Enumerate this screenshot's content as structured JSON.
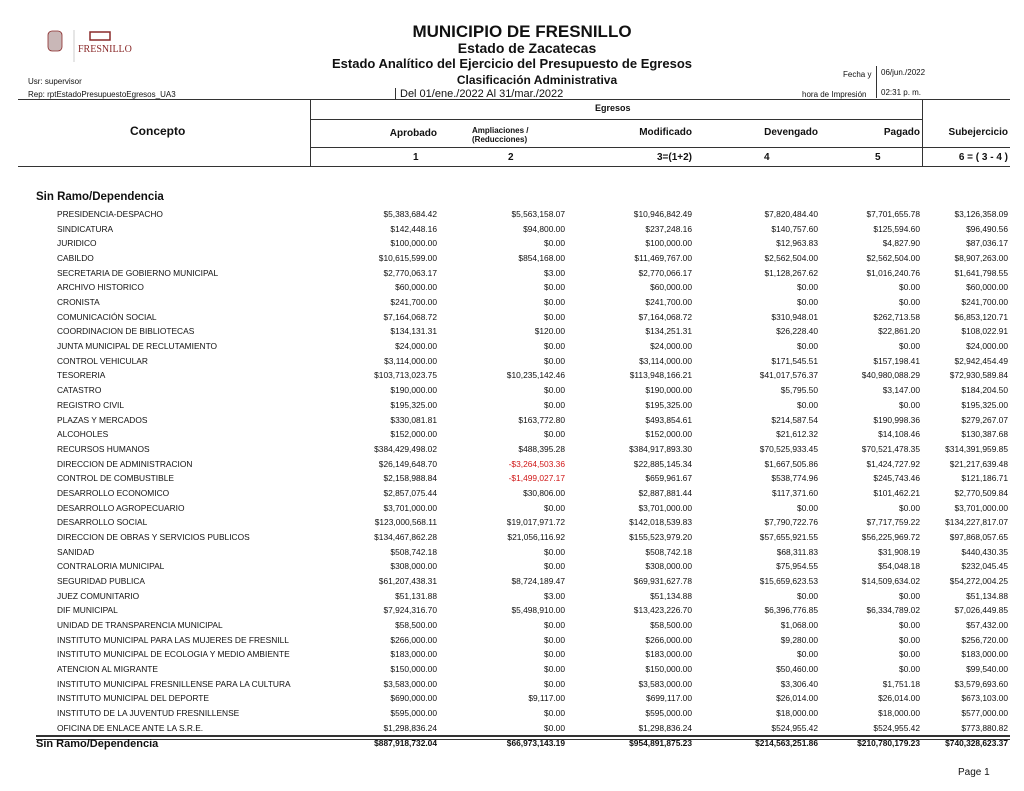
{
  "header": {
    "title": "MUNICIPIO DE FRESNILLO",
    "state": "Estado de Zacatecas",
    "report": "Estado Analítico del Ejercicio del Presupuesto de Egresos",
    "classification": "Clasificación Administrativa",
    "period": "Del 01/ene./2022 Al 31/mar./2022",
    "user": "Usr: supervisor",
    "rep": "Rep: rptEstadoPresupuestoEgresos_UA3",
    "date_label": "Fecha y",
    "date_value": "06/jun./2022",
    "time_label": "hora de Impresión",
    "time_value": "02:31 p. m.",
    "logo_text": "FRESNILLO"
  },
  "columns": {
    "concepto": "Concepto",
    "egresos": "Egresos",
    "aprobado": "Aprobado",
    "ampliaciones": "Ampliaciones /",
    "reducciones": "(Reducciones)",
    "modificado": "Modificado",
    "devengado": "Devengado",
    "pagado": "Pagado",
    "subejercicio": "Subejercicio",
    "n1": "1",
    "n2": "2",
    "n3": "3=(1+2)",
    "n4": "4",
    "n5": "5",
    "n6": "6 = ( 3 - 4 )"
  },
  "group": "Sin Ramo/Dependencia",
  "rows": [
    [
      "PRESIDENCIA-DESPACHO",
      "$5,383,684.42",
      "$5,563,158.07",
      "$10,946,842.49",
      "$7,820,484.40",
      "$7,701,655.78",
      "$3,126,358.09"
    ],
    [
      "SINDICATURA",
      "$142,448.16",
      "$94,800.00",
      "$237,248.16",
      "$140,757.60",
      "$125,594.60",
      "$96,490.56"
    ],
    [
      "JURIDICO",
      "$100,000.00",
      "$0.00",
      "$100,000.00",
      "$12,963.83",
      "$4,827.90",
      "$87,036.17"
    ],
    [
      "CABILDO",
      "$10,615,599.00",
      "$854,168.00",
      "$11,469,767.00",
      "$2,562,504.00",
      "$2,562,504.00",
      "$8,907,263.00"
    ],
    [
      "SECRETARIA DE GOBIERNO MUNICIPAL",
      "$2,770,063.17",
      "$3.00",
      "$2,770,066.17",
      "$1,128,267.62",
      "$1,016,240.76",
      "$1,641,798.55"
    ],
    [
      "ARCHIVO HISTORICO",
      "$60,000.00",
      "$0.00",
      "$60,000.00",
      "$0.00",
      "$0.00",
      "$60,000.00"
    ],
    [
      "CRONISTA",
      "$241,700.00",
      "$0.00",
      "$241,700.00",
      "$0.00",
      "$0.00",
      "$241,700.00"
    ],
    [
      "COMUNICACIÓN SOCIAL",
      "$7,164,068.72",
      "$0.00",
      "$7,164,068.72",
      "$310,948.01",
      "$262,713.58",
      "$6,853,120.71"
    ],
    [
      "COORDINACION DE BIBLIOTECAS",
      "$134,131.31",
      "$120.00",
      "$134,251.31",
      "$26,228.40",
      "$22,861.20",
      "$108,022.91"
    ],
    [
      "JUNTA MUNICIPAL DE RECLUTAMIENTO",
      "$24,000.00",
      "$0.00",
      "$24,000.00",
      "$0.00",
      "$0.00",
      "$24,000.00"
    ],
    [
      "CONTROL VEHICULAR",
      "$3,114,000.00",
      "$0.00",
      "$3,114,000.00",
      "$171,545.51",
      "$157,198.41",
      "$2,942,454.49"
    ],
    [
      "TESORERIA",
      "$103,713,023.75",
      "$10,235,142.46",
      "$113,948,166.21",
      "$41,017,576.37",
      "$40,980,088.29",
      "$72,930,589.84"
    ],
    [
      "CATASTRO",
      "$190,000.00",
      "$0.00",
      "$190,000.00",
      "$5,795.50",
      "$3,147.00",
      "$184,204.50"
    ],
    [
      "REGISTRO CIVIL",
      "$195,325.00",
      "$0.00",
      "$195,325.00",
      "$0.00",
      "$0.00",
      "$195,325.00"
    ],
    [
      "PLAZAS Y MERCADOS",
      "$330,081.81",
      "$163,772.80",
      "$493,854.61",
      "$214,587.54",
      "$190,998.36",
      "$279,267.07"
    ],
    [
      "ALCOHOLES",
      "$152,000.00",
      "$0.00",
      "$152,000.00",
      "$21,612.32",
      "$14,108.46",
      "$130,387.68"
    ],
    [
      "RECURSOS HUMANOS",
      "$384,429,498.02",
      "$488,395.28",
      "$384,917,893.30",
      "$70,525,933.45",
      "$70,521,478.35",
      "$314,391,959.85"
    ],
    [
      "DIRECCION DE ADMINISTRACION",
      "$26,149,648.70",
      "-$3,264,503.36",
      "$22,885,145.34",
      "$1,667,505.86",
      "$1,424,727.92",
      "$21,217,639.48"
    ],
    [
      "CONTROL DE COMBUSTIBLE",
      "$2,158,988.84",
      "-$1,499,027.17",
      "$659,961.67",
      "$538,774.96",
      "$245,743.46",
      "$121,186.71"
    ],
    [
      "DESARROLLO ECONOMICO",
      "$2,857,075.44",
      "$30,806.00",
      "$2,887,881.44",
      "$117,371.60",
      "$101,462.21",
      "$2,770,509.84"
    ],
    [
      "DESARROLLO AGROPECUARIO",
      "$3,701,000.00",
      "$0.00",
      "$3,701,000.00",
      "$0.00",
      "$0.00",
      "$3,701,000.00"
    ],
    [
      "DESARROLLO SOCIAL",
      "$123,000,568.11",
      "$19,017,971.72",
      "$142,018,539.83",
      "$7,790,722.76",
      "$7,717,759.22",
      "$134,227,817.07"
    ],
    [
      "DIRECCION DE OBRAS Y SERVICIOS PUBLICOS",
      "$134,467,862.28",
      "$21,056,116.92",
      "$155,523,979.20",
      "$57,655,921.55",
      "$56,225,969.72",
      "$97,868,057.65"
    ],
    [
      "SANIDAD",
      "$508,742.18",
      "$0.00",
      "$508,742.18",
      "$68,311.83",
      "$31,908.19",
      "$440,430.35"
    ],
    [
      "CONTRALORIA MUNICIPAL",
      "$308,000.00",
      "$0.00",
      "$308,000.00",
      "$75,954.55",
      "$54,048.18",
      "$232,045.45"
    ],
    [
      "SEGURIDAD PUBLICA",
      "$61,207,438.31",
      "$8,724,189.47",
      "$69,931,627.78",
      "$15,659,623.53",
      "$14,509,634.02",
      "$54,272,004.25"
    ],
    [
      "JUEZ COMUNITARIO",
      "$51,131.88",
      "$3.00",
      "$51,134.88",
      "$0.00",
      "$0.00",
      "$51,134.88"
    ],
    [
      "DIF MUNICIPAL",
      "$7,924,316.70",
      "$5,498,910.00",
      "$13,423,226.70",
      "$6,396,776.85",
      "$6,334,789.02",
      "$7,026,449.85"
    ],
    [
      "UNIDAD DE TRANSPARENCIA MUNICIPAL",
      "$58,500.00",
      "$0.00",
      "$58,500.00",
      "$1,068.00",
      "$0.00",
      "$57,432.00"
    ],
    [
      "INSTITUTO MUNICIPAL PARA LAS MUJERES DE FRESNILL",
      "$266,000.00",
      "$0.00",
      "$266,000.00",
      "$9,280.00",
      "$0.00",
      "$256,720.00"
    ],
    [
      "INSTITUTO MUNICIPAL DE ECOLOGIA Y MEDIO AMBIENTE",
      "$183,000.00",
      "$0.00",
      "$183,000.00",
      "$0.00",
      "$0.00",
      "$183,000.00"
    ],
    [
      "ATENCION AL MIGRANTE",
      "$150,000.00",
      "$0.00",
      "$150,000.00",
      "$50,460.00",
      "$0.00",
      "$99,540.00"
    ],
    [
      "INSTITUTO MUNICIPAL FRESNILLENSE PARA LA CULTURA",
      "$3,583,000.00",
      "$0.00",
      "$3,583,000.00",
      "$3,306.40",
      "$1,751.18",
      "$3,579,693.60"
    ],
    [
      "INSTITUTO MUNICIPAL DEL DEPORTE",
      "$690,000.00",
      "$9,117.00",
      "$699,117.00",
      "$26,014.00",
      "$26,014.00",
      "$673,103.00"
    ],
    [
      "INSTITUTO DE LA JUVENTUD FRESNILLENSE",
      "$595,000.00",
      "$0.00",
      "$595,000.00",
      "$18,000.00",
      "$18,000.00",
      "$577,000.00"
    ],
    [
      "OFICINA DE ENLACE ANTE LA S.R.E.",
      "$1,298,836.24",
      "$0.00",
      "$1,298,836.24",
      "$524,955.42",
      "$524,955.42",
      "$773,880.82"
    ]
  ],
  "total": [
    "Sin Ramo/Dependencia",
    "$887,918,732.04",
    "$66,973,143.19",
    "$954,891,875.23",
    "$214,563,251.86",
    "$210,780,179.23",
    "$740,328,623.37"
  ],
  "footer": {
    "page": "Page 1"
  },
  "colors": {
    "negative": "#d01818",
    "logo": "#8a2a2a"
  }
}
